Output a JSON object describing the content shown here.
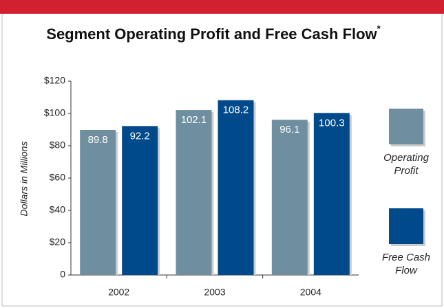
{
  "chart_data": {
    "type": "bar",
    "title": "Segment Operating Profit and Free Cash Flow",
    "title_marker": "*",
    "ylabel": "Dollars in Millions",
    "categories": [
      "2002",
      "2003",
      "2004"
    ],
    "series": [
      {
        "name": "Operating Profit",
        "color": "#6f8fa1",
        "values": [
          89.8,
          102.1,
          96.1
        ]
      },
      {
        "name": "Free Cash Flow",
        "color": "#004a8c",
        "values": [
          92.2,
          108.2,
          100.3
        ]
      }
    ],
    "ylim": [
      0,
      120
    ],
    "yticks": [
      0,
      {
        "value": 20,
        "label": "$20"
      },
      {
        "value": 40,
        "label": "$40"
      },
      {
        "value": 60,
        "label": "$60"
      },
      {
        "value": 80,
        "label": "$80"
      },
      {
        "value": 100,
        "label": "$100"
      },
      {
        "value": 120,
        "label": "$120"
      }
    ]
  }
}
